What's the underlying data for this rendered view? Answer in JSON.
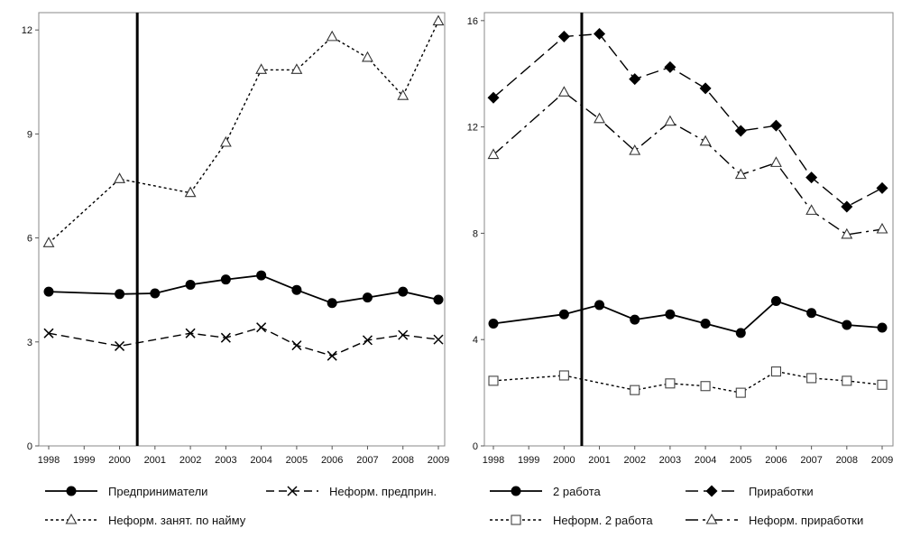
{
  "chart_data": [
    {
      "type": "line",
      "x": [
        1998,
        2000,
        2001,
        2002,
        2003,
        2004,
        2005,
        2006,
        2007,
        2008,
        2009
      ],
      "x_tick_labels": [
        "1998",
        "1999",
        "2000",
        "2001",
        "2002",
        "2003",
        "2004",
        "2005",
        "2006",
        "2007",
        "2008",
        "2009"
      ],
      "y_ticks": [
        0,
        3,
        6,
        9,
        12
      ],
      "ylim": [
        0,
        12.5
      ],
      "vertical_line_x": 2000.5,
      "grid": false,
      "legend_position": "bottom",
      "series": [
        {
          "name": "Предприниматели",
          "style": "solid",
          "marker": "filled-circle",
          "values": [
            4.45,
            4.38,
            4.4,
            4.65,
            4.8,
            4.92,
            4.5,
            4.12,
            4.28,
            4.45,
            4.22
          ]
        },
        {
          "name": "Неформ. предприн.",
          "style": "dashed",
          "marker": "x",
          "values": [
            3.25,
            2.88,
            null,
            3.25,
            3.12,
            3.42,
            2.9,
            2.6,
            3.05,
            3.2,
            3.07
          ]
        },
        {
          "name": "Неформ. занят. по найму",
          "style": "dotted",
          "marker": "open-triangle",
          "values": [
            5.85,
            7.7,
            null,
            7.3,
            8.75,
            10.85,
            10.85,
            11.8,
            11.2,
            10.1,
            12.25
          ]
        }
      ]
    },
    {
      "type": "line",
      "x": [
        1998,
        2000,
        2001,
        2002,
        2003,
        2004,
        2005,
        2006,
        2007,
        2008,
        2009
      ],
      "x_tick_labels": [
        "1998",
        "1999",
        "2000",
        "2001",
        "2002",
        "2003",
        "2004",
        "2005",
        "2006",
        "2007",
        "2008",
        "2009"
      ],
      "y_ticks": [
        0,
        4,
        8,
        12,
        16
      ],
      "ylim": [
        0,
        16.3
      ],
      "vertical_line_x": 2000.5,
      "grid": false,
      "legend_position": "bottom",
      "series": [
        {
          "name": "2 работа",
          "style": "solid",
          "marker": "filled-circle",
          "values": [
            4.6,
            4.95,
            5.3,
            4.75,
            4.95,
            4.6,
            4.25,
            5.45,
            5.0,
            4.55,
            4.45
          ]
        },
        {
          "name": "Приработки",
          "style": "long-dash",
          "marker": "filled-diamond",
          "values": [
            13.1,
            15.4,
            15.5,
            13.8,
            14.25,
            13.45,
            11.85,
            12.05,
            10.1,
            9.0,
            9.7
          ]
        },
        {
          "name": "Неформ. 2 работа",
          "style": "dotted",
          "marker": "open-square",
          "values": [
            2.45,
            2.65,
            null,
            2.1,
            2.35,
            2.25,
            2.0,
            2.8,
            2.55,
            2.45,
            2.3
          ]
        },
        {
          "name": "Неформ. приработки",
          "style": "dash-dot",
          "marker": "open-triangle",
          "values": [
            10.95,
            13.3,
            12.3,
            11.1,
            12.2,
            11.45,
            10.2,
            10.65,
            8.85,
            7.95,
            8.15
          ]
        }
      ]
    }
  ]
}
